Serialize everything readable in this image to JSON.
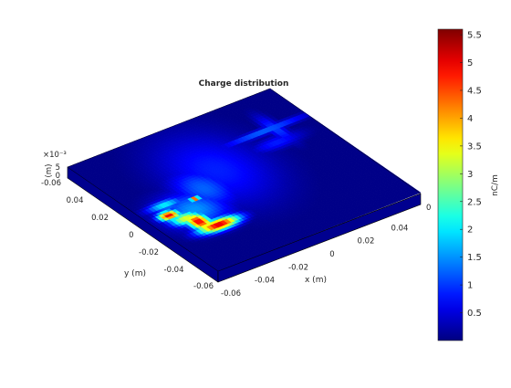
{
  "chart_data": {
    "type": "heatmap",
    "title": "Charge distribution",
    "xlabel": "x (m)",
    "ylabel": "y (m)",
    "zlabel": "(m)",
    "z_exponent": "×10⁻³",
    "x_range": [
      -0.06,
      0.06
    ],
    "y_range": [
      -0.06,
      0.06
    ],
    "z_range": [
      0,
      5
    ],
    "x_ticks": [
      "-0.06",
      "-0.04",
      "-0.02",
      "0",
      "0.02",
      "0.04",
      "0.06"
    ],
    "x_ticks_shown": [
      "-0.06",
      "-0.04",
      "-0.02",
      "0",
      "0.02",
      "0.04"
    ],
    "y_ticks": [
      "-0.06",
      "-0.04",
      "-0.02",
      "0",
      "0.02",
      "0.04",
      "0.06"
    ],
    "y_ticks_shown": [
      "-0.06",
      "-0.04",
      "-0.02",
      "0",
      "0.02",
      "0.04",
      "-0.06"
    ],
    "z_ticks": [
      "0",
      "5"
    ],
    "colorbar": {
      "label": "nC/m",
      "min": 0,
      "max": 5.6,
      "ticks": [
        "0.5",
        "1",
        "1.5",
        "2",
        "2.5",
        "3",
        "3.5",
        "4",
        "4.5",
        "5",
        "5.5"
      ],
      "colormap": "jet"
    },
    "hotspots": [
      {
        "x": -0.048,
        "y": -0.005,
        "value": 5.4,
        "sx": 0.004,
        "sy": 0.003
      },
      {
        "x": -0.043,
        "y": -0.012,
        "value": 3.6,
        "sx": 0.006,
        "sy": 0.004
      },
      {
        "x": -0.04,
        "y": -0.018,
        "value": 5.3,
        "sx": 0.004,
        "sy": 0.006
      },
      {
        "x": -0.034,
        "y": -0.026,
        "value": 5.5,
        "sx": 0.008,
        "sy": 0.0035
      },
      {
        "x": -0.044,
        "y": 0.004,
        "value": 2.2,
        "sx": 0.007,
        "sy": 0.003
      },
      {
        "x": -0.029,
        "y": 0.0,
        "value": 5.5,
        "sx": 0.0016,
        "sy": 0.0016
      },
      {
        "x": -0.035,
        "y": -0.008,
        "value": 1.6,
        "sx": 0.012,
        "sy": 0.012
      },
      {
        "x": -0.02,
        "y": 0.005,
        "value": 1.3,
        "sx": 0.01,
        "sy": 0.014
      },
      {
        "x": -0.005,
        "y": 0.015,
        "value": 0.9,
        "sx": 0.018,
        "sy": 0.025
      },
      {
        "x": 0.034,
        "y": 0.03,
        "value": 1.4,
        "sx": 0.018,
        "sy": 0.002
      },
      {
        "x": 0.04,
        "y": 0.028,
        "value": 1.1,
        "sx": 0.003,
        "sy": 0.01
      },
      {
        "x": 0.033,
        "y": 0.018,
        "value": 0.9,
        "sx": 0.01,
        "sy": 0.004
      }
    ],
    "background_value": 0.05,
    "grid": false
  }
}
